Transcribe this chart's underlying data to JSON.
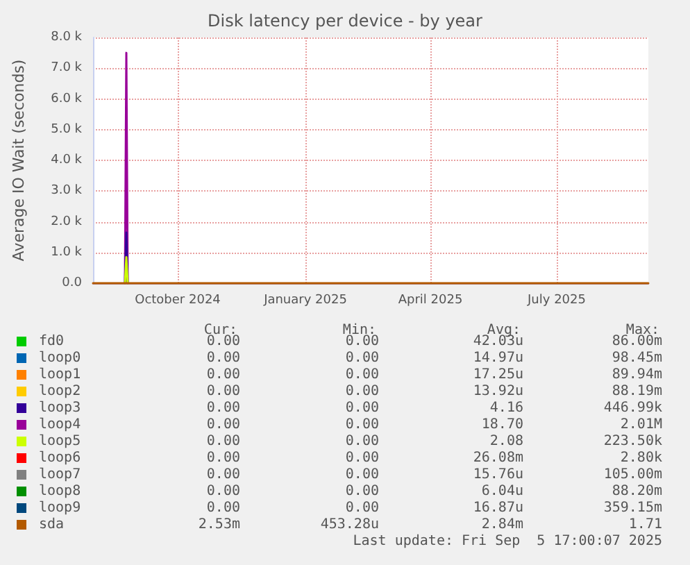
{
  "chart_data": {
    "type": "line",
    "title": "Disk latency per device - by year",
    "ylabel": "Average IO Wait (seconds)",
    "x": [
      "2024-08-01",
      "2024-08-24",
      "2024-08-25",
      "2024-08-26",
      "2025-09-05"
    ],
    "xlim": [
      "2024-08-01",
      "2025-09-05"
    ],
    "xticks": [
      {
        "value": "2024-10-01",
        "label": "October 2024"
      },
      {
        "value": "2025-01-01",
        "label": "January 2025"
      },
      {
        "value": "2025-04-01",
        "label": "April 2025"
      },
      {
        "value": "2025-07-01",
        "label": "July 2025"
      }
    ],
    "ylim": [
      0,
      8000
    ],
    "yticks": [
      {
        "value": 0,
        "label": "0.0"
      },
      {
        "value": 1000,
        "label": "1.0 k"
      },
      {
        "value": 2000,
        "label": "2.0 k"
      },
      {
        "value": 3000,
        "label": "3.0 k"
      },
      {
        "value": 4000,
        "label": "4.0 k"
      },
      {
        "value": 5000,
        "label": "5.0 k"
      },
      {
        "value": 6000,
        "label": "6.0 k"
      },
      {
        "value": 7000,
        "label": "7.0 k"
      },
      {
        "value": 8000,
        "label": "8.0 k"
      }
    ],
    "series": [
      {
        "name": "fd0",
        "color": "#00cc00",
        "values": [
          null,
          null,
          null,
          null,
          null
        ]
      },
      {
        "name": "loop0",
        "color": "#0066b3",
        "values": [
          null,
          null,
          null,
          null,
          null
        ]
      },
      {
        "name": "loop1",
        "color": "#ff8000",
        "values": [
          null,
          null,
          null,
          null,
          null
        ]
      },
      {
        "name": "loop2",
        "color": "#ffcc00",
        "values": [
          null,
          null,
          null,
          null,
          null
        ]
      },
      {
        "name": "loop3",
        "color": "#330099",
        "values": [
          null,
          0,
          1650,
          0,
          null
        ]
      },
      {
        "name": "loop4",
        "color": "#990099",
        "values": [
          null,
          0,
          7500,
          0,
          null
        ]
      },
      {
        "name": "loop5",
        "color": "#ccff00",
        "values": [
          null,
          0,
          850,
          0,
          null
        ]
      },
      {
        "name": "loop6",
        "color": "#ff0000",
        "values": [
          null,
          null,
          null,
          null,
          null
        ]
      },
      {
        "name": "loop7",
        "color": "#808080",
        "values": [
          null,
          null,
          null,
          null,
          null
        ]
      },
      {
        "name": "loop8",
        "color": "#008f00",
        "values": [
          null,
          null,
          null,
          null,
          null
        ]
      },
      {
        "name": "loop9",
        "color": "#00487d",
        "values": [
          null,
          null,
          null,
          null,
          null
        ]
      },
      {
        "name": "sda",
        "color": "#b35a00",
        "values": [
          0,
          0,
          0,
          0,
          0
        ]
      }
    ],
    "annotations": [
      "Cur: Min: Avg: Max:",
      "0.00 0.00 42.03u 86.00m",
      "0.00 0.00 14.97u 98.45m",
      "0.00 0.00 17.25u 89.94m",
      "0.00 0.00 13.92u 88.19m",
      "0.00 0.00 4.16 446.99k",
      "0.00 0.00 18.70 2.01M",
      "0.00 0.00 2.08 223.50k",
      "0.00 0.00 26.08m 2.80k",
      "0.00 0.00 15.76u 105.00m",
      "0.00 0.00 6.04u 88.20m",
      "0.00 0.00 16.87u 359.15m",
      "2.53m 453.28u 2.84m 1.71",
      "Last update: Fri Sep  5 17:00:07 2025"
    ],
    "grid": true,
    "legend": "bottom",
    "marker": "none",
    "line_style": "solid"
  }
}
